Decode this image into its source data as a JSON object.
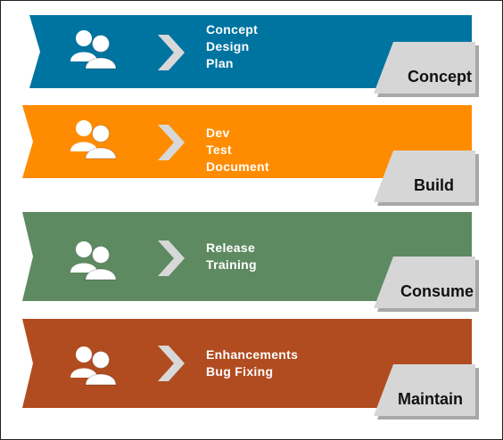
{
  "stages": [
    {
      "color": "#0074A1",
      "items": [
        "Concept",
        "Design",
        "Plan"
      ],
      "tag": "Concept"
    },
    {
      "color": "#FF8C00",
      "items": [
        "Dev",
        "Test",
        "Document"
      ],
      "tag": "Build"
    },
    {
      "color": "#5E8A62",
      "items": [
        "Release",
        "Training"
      ],
      "tag": "Consume"
    },
    {
      "color": "#B14C20",
      "items": [
        "Enhancements",
        "Bug Fixing"
      ],
      "tag": "Maintain"
    }
  ],
  "icons": {
    "people": "people-icon",
    "chevron": "chevron-right-icon"
  }
}
